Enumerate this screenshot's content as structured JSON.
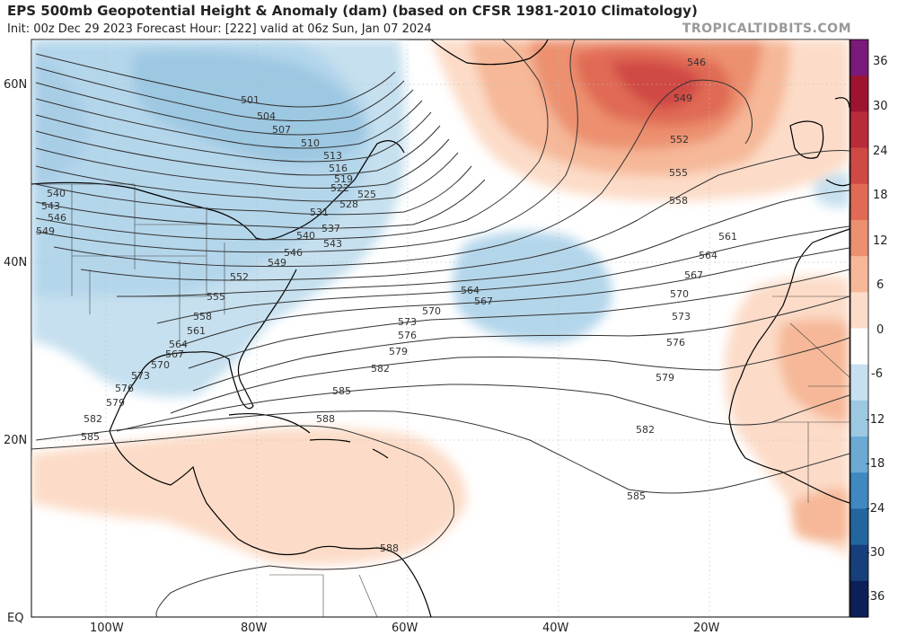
{
  "header": {
    "title": "EPS 500mb Geopotential Height & Anomaly (dam) (based on CFSR 1981-2010 Climatology)",
    "subtitle": "Init: 00z Dec 29 2023   Forecast Hour: [222]   valid at 06z Sun, Jan 07 2024",
    "brand": "TROPICALTIDBITS.COM"
  },
  "axes": {
    "lat_labels": [
      "60N",
      "40N",
      "20N",
      "EQ"
    ],
    "lon_labels": [
      "100W",
      "80W",
      "60W",
      "40W",
      "20W"
    ]
  },
  "colorbar": {
    "labels": [
      "36",
      "30",
      "24",
      "18",
      "12",
      "6",
      "0",
      "-6",
      "-12",
      "-18",
      "-24",
      "-30",
      "-36"
    ],
    "colors": [
      "#7a1a7a",
      "#9e1430",
      "#b82c3a",
      "#d04a45",
      "#e06a55",
      "#ec9070",
      "#f6b898",
      "#fcdcc8",
      "#ffffff",
      "#c6e0ef",
      "#9dc8e2",
      "#6aaad3",
      "#3f88c0",
      "#23669e",
      "#163f7c",
      "#0c1f58"
    ]
  },
  "contour_labels": [
    "501",
    "504",
    "507",
    "510",
    "513",
    "516",
    "519",
    "522",
    "525",
    "528",
    "531",
    "537",
    "540",
    "543",
    "546",
    "549",
    "552",
    "555",
    "558",
    "561",
    "564",
    "567",
    "570",
    "573",
    "576",
    "579",
    "582",
    "585",
    "588"
  ],
  "heights_dam": {
    "west": [
      "540",
      "543",
      "546",
      "549"
    ],
    "east_atlantic": [
      "546",
      "549",
      "552",
      "555",
      "558",
      "561",
      "564",
      "567",
      "570",
      "573",
      "576",
      "579",
      "582",
      "585"
    ],
    "southeast_us": [
      "552",
      "555",
      "558",
      "561",
      "564",
      "567",
      "570",
      "573",
      "576",
      "579",
      "582",
      "585"
    ],
    "mid_atlantic": [
      "564",
      "567",
      "570",
      "573",
      "576",
      "579",
      "582",
      "585",
      "588"
    ]
  }
}
